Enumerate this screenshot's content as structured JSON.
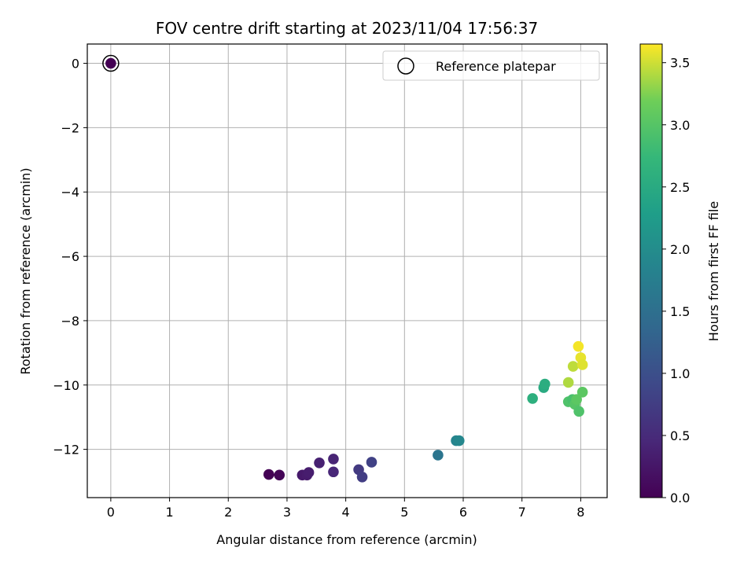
{
  "chart_data": {
    "type": "scatter",
    "title": "FOV centre drift starting at 2023/11/04 17:56:37",
    "xlabel": "Angular distance from reference (arcmin)",
    "ylabel": "Rotation from reference (arcmin)",
    "xlim": [
      -0.4,
      8.45
    ],
    "ylim": [
      -13.5,
      0.6
    ],
    "xticks": [
      0,
      1,
      2,
      3,
      4,
      5,
      6,
      7,
      8
    ],
    "yticks": [
      0,
      -2,
      -4,
      -6,
      -8,
      -10,
      -12
    ],
    "grid": true,
    "legend": {
      "placement": "top-right",
      "entries": [
        "Reference platepar"
      ]
    },
    "reference_point": {
      "x": 0,
      "y": 0,
      "label": "Reference platepar"
    },
    "colorbar": {
      "label": "Hours from first FF file",
      "colormap": "viridis",
      "range": [
        0.0,
        3.65
      ],
      "ticks": [
        0.0,
        0.5,
        1.0,
        1.5,
        2.0,
        2.5,
        3.0,
        3.5
      ],
      "tick_labels": [
        "0.0",
        "0.5",
        "1.0",
        "1.5",
        "2.0",
        "2.5",
        "3.0",
        "3.5"
      ]
    },
    "points": [
      {
        "x": 0.0,
        "y": 0.0,
        "hours": 0.0
      },
      {
        "x": 2.69,
        "y": -12.78,
        "hours": 0.0
      },
      {
        "x": 2.87,
        "y": -12.8,
        "hours": 0.03
      },
      {
        "x": 3.26,
        "y": -12.8,
        "hours": 0.28
      },
      {
        "x": 3.34,
        "y": -12.8,
        "hours": 0.3
      },
      {
        "x": 3.37,
        "y": -12.72,
        "hours": 0.33
      },
      {
        "x": 3.55,
        "y": -12.42,
        "hours": 0.38
      },
      {
        "x": 3.79,
        "y": -12.3,
        "hours": 0.42
      },
      {
        "x": 3.79,
        "y": -12.7,
        "hours": 0.45
      },
      {
        "x": 4.22,
        "y": -12.63,
        "hours": 0.7
      },
      {
        "x": 4.28,
        "y": -12.86,
        "hours": 0.75
      },
      {
        "x": 4.44,
        "y": -12.4,
        "hours": 0.8
      },
      {
        "x": 5.57,
        "y": -12.18,
        "hours": 1.6
      },
      {
        "x": 5.88,
        "y": -11.73,
        "hours": 1.85
      },
      {
        "x": 5.93,
        "y": -11.73,
        "hours": 1.9
      },
      {
        "x": 7.18,
        "y": -10.42,
        "hours": 2.6
      },
      {
        "x": 7.37,
        "y": -10.08,
        "hours": 2.5
      },
      {
        "x": 7.39,
        "y": -9.97,
        "hours": 2.55
      },
      {
        "x": 7.79,
        "y": -10.52,
        "hours": 2.95
      },
      {
        "x": 7.86,
        "y": -10.45,
        "hours": 2.9
      },
      {
        "x": 7.9,
        "y": -10.6,
        "hours": 3.0
      },
      {
        "x": 7.93,
        "y": -10.45,
        "hours": 3.05
      },
      {
        "x": 7.97,
        "y": -10.82,
        "hours": 2.95
      },
      {
        "x": 8.03,
        "y": -10.22,
        "hours": 3.05
      },
      {
        "x": 7.79,
        "y": -9.92,
        "hours": 3.4
      },
      {
        "x": 7.87,
        "y": -9.42,
        "hours": 3.45
      },
      {
        "x": 7.96,
        "y": -8.8,
        "hours": 3.62
      },
      {
        "x": 8.0,
        "y": -9.15,
        "hours": 3.58
      },
      {
        "x": 8.03,
        "y": -9.37,
        "hours": 3.55
      }
    ]
  }
}
